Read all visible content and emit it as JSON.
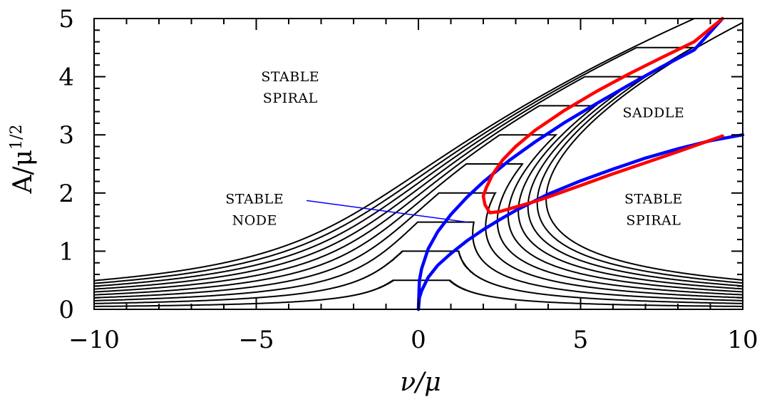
{
  "chart_data": {
    "type": "line",
    "xlabel": "ν/μ",
    "ylabel": "A/μ",
    "ylabel_exponent": "1/2",
    "xlim": [
      -10,
      10
    ],
    "ylim": [
      0,
      5
    ],
    "grid": false,
    "x_ticks": [
      {
        "value": -10,
        "label": "−10"
      },
      {
        "value": -5,
        "label": "−5"
      },
      {
        "value": 0,
        "label": "0"
      },
      {
        "value": 5,
        "label": "5"
      },
      {
        "value": 10,
        "label": "10"
      }
    ],
    "y_ticks": [
      {
        "value": 0,
        "label": "0"
      },
      {
        "value": 1,
        "label": "1"
      },
      {
        "value": 2,
        "label": "2"
      },
      {
        "value": 3,
        "label": "3"
      },
      {
        "value": 4,
        "label": "4"
      },
      {
        "value": 5,
        "label": "5"
      }
    ],
    "response_curves": {
      "color": "#000000",
      "forcing_values": [
        0.5,
        1.0,
        1.5,
        2.0,
        2.5,
        3.0,
        3.5,
        4.0,
        4.5,
        5.0
      ]
    },
    "boundary_lines": [
      {
        "color": "#0000ff",
        "x": [
          0,
          0.03,
          0.1,
          0.3,
          0.6,
          1.0,
          1.5,
          2.0,
          2.8,
          3.6,
          4.5,
          5.5,
          6.5,
          7.5,
          8.5,
          9.375
        ],
        "y": [
          0,
          0.5,
          0.7,
          1.04,
          1.34,
          1.63,
          1.93,
          2.19,
          2.56,
          2.88,
          3.21,
          3.54,
          3.86,
          4.17,
          4.46,
          5.0
        ]
      },
      {
        "color": "#0000ff",
        "x": [
          0,
          0.03,
          0.1,
          0.3,
          0.6,
          1.0,
          1.5,
          2.0,
          2.5,
          3.0,
          4.0,
          5.0,
          6.0,
          7.0,
          8.0,
          9.0,
          10.0
        ],
        "y": [
          0,
          0.2,
          0.32,
          0.55,
          0.76,
          0.96,
          1.18,
          1.37,
          1.54,
          1.7,
          1.98,
          2.21,
          2.41,
          2.6,
          2.76,
          2.9,
          3.0
        ]
      },
      {
        "color": "#ff0000",
        "x": [
          2.0,
          2.05,
          2.2,
          2.5,
          3.0,
          3.5,
          4.0,
          5.0,
          6.0,
          7.0,
          8.0,
          9.375
        ],
        "y": [
          1.95,
          1.8,
          1.66,
          1.68,
          1.76,
          1.84,
          1.93,
          2.13,
          2.33,
          2.52,
          2.71,
          2.98
        ]
      },
      {
        "color": "#ff0000",
        "x": [
          2.0,
          2.1,
          2.3,
          2.6,
          3.0,
          3.6,
          4.5,
          5.5,
          6.5,
          7.5,
          8.5,
          9.375
        ],
        "y": [
          1.95,
          2.1,
          2.33,
          2.57,
          2.8,
          3.08,
          3.42,
          3.75,
          4.05,
          4.33,
          4.6,
          5.0
        ]
      }
    ],
    "annotations": [
      {
        "lines": [
          "STABLE",
          "SPIRAL"
        ],
        "x": -3.95,
        "y": 3.92
      },
      {
        "lines": [
          "SADDLE"
        ],
        "x": 7.25,
        "y": 3.3
      },
      {
        "lines": [
          "STABLE",
          "NODE"
        ],
        "x": -5.05,
        "y": 1.82
      },
      {
        "lines": [
          "STABLE",
          "SPIRAL"
        ],
        "x": 7.25,
        "y": 1.82
      }
    ],
    "pointer_line": {
      "color": "#0000ff",
      "from": [
        -3.45,
        1.87
      ],
      "to": [
        1.5,
        1.5
      ]
    }
  }
}
